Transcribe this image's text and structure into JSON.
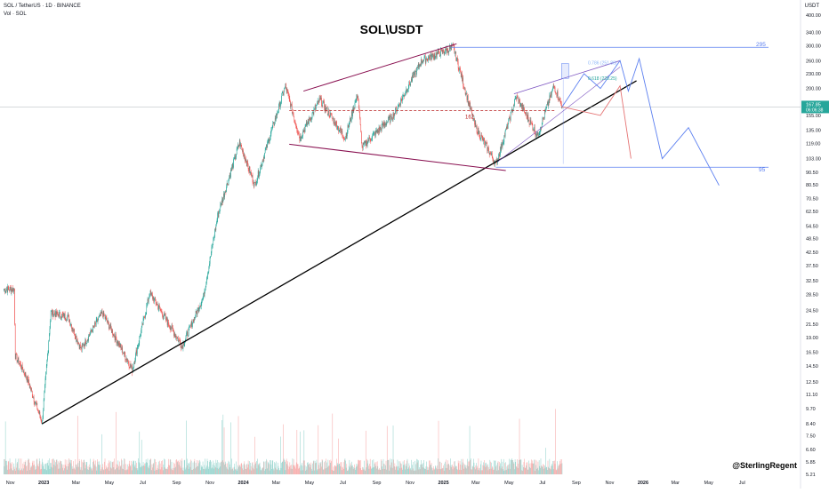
{
  "header": {
    "symbol": "SOL / TetherUS · 1D · BINANCE",
    "volume_label": "Vol · SOL",
    "title": "SOL\\USDT",
    "currency": "USDT",
    "author": "@SterlingRegent"
  },
  "price_tag": {
    "price": "167.85",
    "countdown": "06:06:38",
    "color": "#26a69a"
  },
  "colors": {
    "up": "#26a69a",
    "down": "#ef5350",
    "trend": "#000000",
    "channel": "#880e4f",
    "level": "#5b7ff0",
    "mid": "#b71c1c",
    "path_blue": "#5b7ff0",
    "path_red": "#e57373"
  },
  "annotations": {
    "level_295": "295",
    "level_95": "95",
    "mid_162": "162",
    "fib_0786": "0.786 (251.88)",
    "fib_0618": "0.618 (220.25)"
  },
  "chart_data": {
    "type": "candlestick",
    "title": "SOL\\USDT",
    "y_scale": "log",
    "ylim": [
      5.21,
      400
    ],
    "y_ticks": [
      "400.00",
      "340.00",
      "300.00",
      "260.00",
      "230.00",
      "200.00",
      "175.00",
      "155.00",
      "135.00",
      "119.00",
      "103.00",
      "90.50",
      "80.50",
      "70.50",
      "62.50",
      "54.50",
      "48.50",
      "42.50",
      "37.50",
      "32.50",
      "28.50",
      "24.50",
      "21.50",
      "19.00",
      "16.50",
      "14.50",
      "12.50",
      "11.10",
      "9.70",
      "8.40",
      "7.50",
      "6.60",
      "5.85",
      "5.21"
    ],
    "x_ticks": [
      "Nov",
      "2023",
      "Mar",
      "May",
      "Jul",
      "Sep",
      "Nov",
      "2024",
      "Mar",
      "May",
      "Jul",
      "Sep",
      "Nov",
      "2025",
      "Mar",
      "May",
      "Jul",
      "Sep",
      "Nov",
      "2026",
      "Mar",
      "May",
      "Jul"
    ],
    "price_path": [
      [
        "2022-10-20",
        30
      ],
      [
        "2022-11-08",
        30
      ],
      [
        "2022-11-10",
        16
      ],
      [
        "2022-12-01",
        13
      ],
      [
        "2022-12-29",
        8.5
      ],
      [
        "2023-01-14",
        24
      ],
      [
        "2023-02-15",
        23
      ],
      [
        "2023-03-10",
        17
      ],
      [
        "2023-04-18",
        24
      ],
      [
        "2023-06-12",
        14
      ],
      [
        "2023-07-14",
        29
      ],
      [
        "2023-09-11",
        17.5
      ],
      [
        "2023-10-20",
        28
      ],
      [
        "2023-11-15",
        60
      ],
      [
        "2023-12-25",
        120
      ],
      [
        "2024-01-22",
        80
      ],
      [
        "2024-03-18",
        205
      ],
      [
        "2024-04-13",
        125
      ],
      [
        "2024-05-20",
        180
      ],
      [
        "2024-07-05",
        125
      ],
      [
        "2024-07-28",
        190
      ],
      [
        "2024-08-05",
        115
      ],
      [
        "2024-10-01",
        155
      ],
      [
        "2024-11-22",
        260
      ],
      [
        "2025-01-19",
        295
      ],
      [
        "2025-02-28",
        140
      ],
      [
        "2025-04-07",
        98
      ],
      [
        "2025-05-14",
        185
      ],
      [
        "2025-06-22",
        128
      ],
      [
        "2025-07-22",
        205
      ],
      [
        "2025-08-06",
        168
      ]
    ],
    "projection_blue": [
      [
        "2025-08-06",
        168
      ],
      [
        "2025-09-15",
        230
      ],
      [
        "2025-10-15",
        200
      ],
      [
        "2025-11-20",
        260
      ],
      [
        "2025-12-05",
        195
      ],
      [
        "2025-12-25",
        265
      ],
      [
        "2026-02-05",
        103
      ],
      [
        "2026-03-25",
        138
      ],
      [
        "2026-05-20",
        80
      ]
    ],
    "projection_red": [
      [
        "2025-08-06",
        168
      ],
      [
        "2025-10-15",
        155
      ],
      [
        "2025-11-20",
        205
      ],
      [
        "2025-12-10",
        103
      ]
    ],
    "series": [
      {
        "values": "daily OHLC candles with volume histogram"
      }
    ]
  }
}
